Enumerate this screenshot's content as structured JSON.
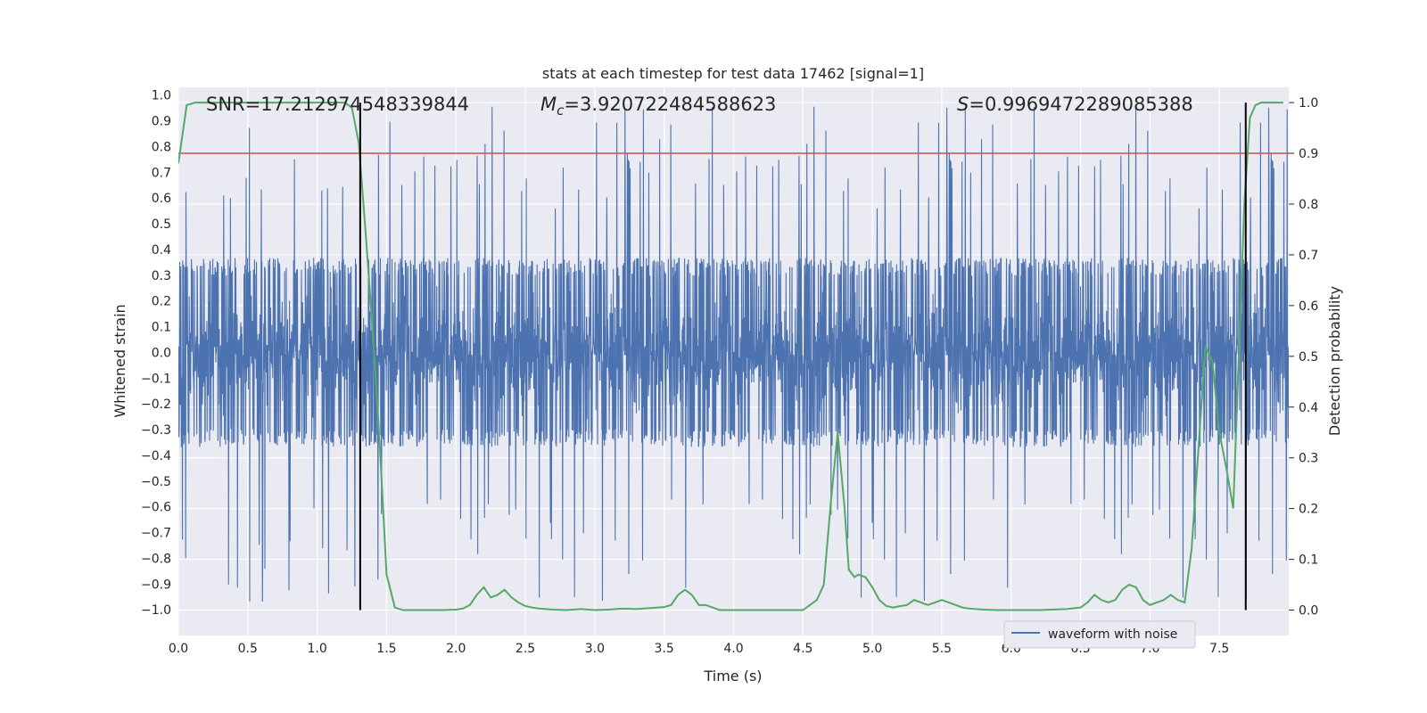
{
  "chart_data": {
    "type": "line",
    "title": "stats at each timestep for test data 17462 [signal=1]",
    "xlabel": "Time (s)",
    "ylabel_left": "Whitened strain",
    "ylabel_right": "Detection probability",
    "xlim": [
      0.0,
      8.0
    ],
    "ylim_left": [
      -1.1,
      1.03
    ],
    "ylim_right": [
      -0.05,
      1.03
    ],
    "x_ticks": [
      "0.0",
      "0.5",
      "1.0",
      "1.5",
      "2.0",
      "2.5",
      "3.0",
      "3.5",
      "4.0",
      "4.5",
      "5.0",
      "5.5",
      "6.0",
      "6.5",
      "7.0",
      "7.5"
    ],
    "y_ticks_left": [
      "−1.0",
      "−0.9",
      "−0.8",
      "−0.7",
      "−0.6",
      "−0.5",
      "−0.4",
      "−0.3",
      "−0.2",
      "−0.1",
      "0.0",
      "0.1",
      "0.2",
      "0.3",
      "0.4",
      "0.5",
      "0.6",
      "0.7",
      "0.8",
      "0.9",
      "1.0"
    ],
    "y_ticks_right": [
      "0.0",
      "0.1",
      "0.2",
      "0.3",
      "0.4",
      "0.5",
      "0.6",
      "0.7",
      "0.8",
      "0.9",
      "1.0"
    ],
    "annotations": {
      "snr": "SNR=17.212974548339844",
      "mc_symbol": "M",
      "mc_sub": "c",
      "mc_value": "=3.920722484588623",
      "s_symbol": "S",
      "s_value": "=0.9969472289085388"
    },
    "threshold": 0.9,
    "threshold_color": "#c44e52",
    "vertical_lines_x": [
      1.31,
      7.69
    ],
    "series": [
      {
        "name": "waveform with noise",
        "axis": "left",
        "color": "#4c72b0",
        "kind": "noise",
        "samples": 4096,
        "core_amplitude": 0.35,
        "envelope_peak": 0.97,
        "seed": 17462
      },
      {
        "name": "detection probability",
        "axis": "right",
        "color": "#55a868",
        "x": [
          0.0,
          0.06,
          0.12,
          0.2,
          0.4,
          0.6,
          0.8,
          1.0,
          1.2,
          1.25,
          1.3,
          1.35,
          1.4,
          1.45,
          1.5,
          1.56,
          1.62,
          1.7,
          1.8,
          1.9,
          2.0,
          2.05,
          2.1,
          2.15,
          2.2,
          2.25,
          2.3,
          2.35,
          2.4,
          2.45,
          2.5,
          2.55,
          2.6,
          2.7,
          2.8,
          2.9,
          3.0,
          3.1,
          3.2,
          3.3,
          3.4,
          3.5,
          3.55,
          3.6,
          3.65,
          3.7,
          3.75,
          3.8,
          3.9,
          4.0,
          4.1,
          4.2,
          4.3,
          4.4,
          4.5,
          4.6,
          4.65,
          4.7,
          4.75,
          4.8,
          4.83,
          4.87,
          4.9,
          4.95,
          5.0,
          5.05,
          5.1,
          5.15,
          5.2,
          5.25,
          5.3,
          5.35,
          5.4,
          5.5,
          5.55,
          5.6,
          5.65,
          5.7,
          5.8,
          5.9,
          6.0,
          6.1,
          6.2,
          6.4,
          6.5,
          6.55,
          6.6,
          6.65,
          6.7,
          6.75,
          6.8,
          6.85,
          6.9,
          6.95,
          7.0,
          7.05,
          7.1,
          7.15,
          7.2,
          7.25,
          7.3,
          7.35,
          7.4,
          7.45,
          7.5,
          7.55,
          7.6,
          7.64,
          7.68,
          7.72,
          7.76,
          7.8,
          7.9,
          7.96
        ],
        "values": [
          0.88,
          0.995,
          1.0,
          1.0,
          1.0,
          1.0,
          1.0,
          1.0,
          1.0,
          0.99,
          0.92,
          0.74,
          0.55,
          0.33,
          0.07,
          0.005,
          0.0,
          0.0,
          0.0,
          0.0,
          0.001,
          0.003,
          0.01,
          0.03,
          0.045,
          0.025,
          0.03,
          0.04,
          0.025,
          0.015,
          0.008,
          0.005,
          0.003,
          0.001,
          0.0,
          0.002,
          0.0,
          0.001,
          0.003,
          0.002,
          0.004,
          0.006,
          0.01,
          0.03,
          0.04,
          0.03,
          0.01,
          0.01,
          0.0,
          0.0,
          0.0,
          0.0,
          0.0,
          0.0,
          0.0,
          0.02,
          0.05,
          0.21,
          0.35,
          0.2,
          0.08,
          0.065,
          0.07,
          0.065,
          0.045,
          0.02,
          0.008,
          0.005,
          0.008,
          0.01,
          0.02,
          0.015,
          0.01,
          0.02,
          0.015,
          0.01,
          0.005,
          0.003,
          0.001,
          0.0,
          0.0,
          0.0,
          0.0,
          0.002,
          0.005,
          0.015,
          0.03,
          0.02,
          0.015,
          0.02,
          0.04,
          0.05,
          0.045,
          0.02,
          0.01,
          0.015,
          0.02,
          0.03,
          0.02,
          0.015,
          0.12,
          0.32,
          0.52,
          0.49,
          0.35,
          0.28,
          0.2,
          0.5,
          0.8,
          0.97,
          0.995,
          1.0,
          1.0,
          1.0
        ]
      }
    ],
    "legend": {
      "entries": [
        "waveform with noise"
      ],
      "placement": "lower-right"
    },
    "grid": true
  }
}
